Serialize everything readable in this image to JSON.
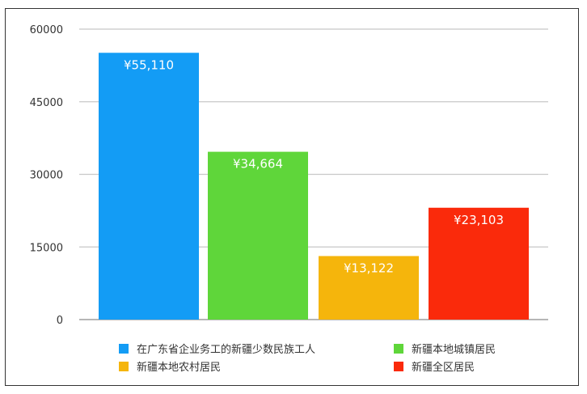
{
  "chart_data": {
    "type": "bar",
    "categories": [
      "在广东省企业务工的新疆少数民族工人",
      "新疆本地城镇居民",
      "新疆本地农村居民",
      "新疆全区居民"
    ],
    "values": [
      55110,
      34664,
      13122,
      23103
    ],
    "data_labels": [
      "¥55,110",
      "¥34,664",
      "¥13,122",
      "¥23,103"
    ],
    "colors": [
      "#139CF5",
      "#5FD63A",
      "#F5B50C",
      "#FA2A0B"
    ],
    "yticks": [
      "0",
      "15000",
      "30000",
      "45000",
      "60000"
    ],
    "ylim": [
      0,
      60000
    ],
    "grid": true,
    "legend_position": "bottom"
  }
}
